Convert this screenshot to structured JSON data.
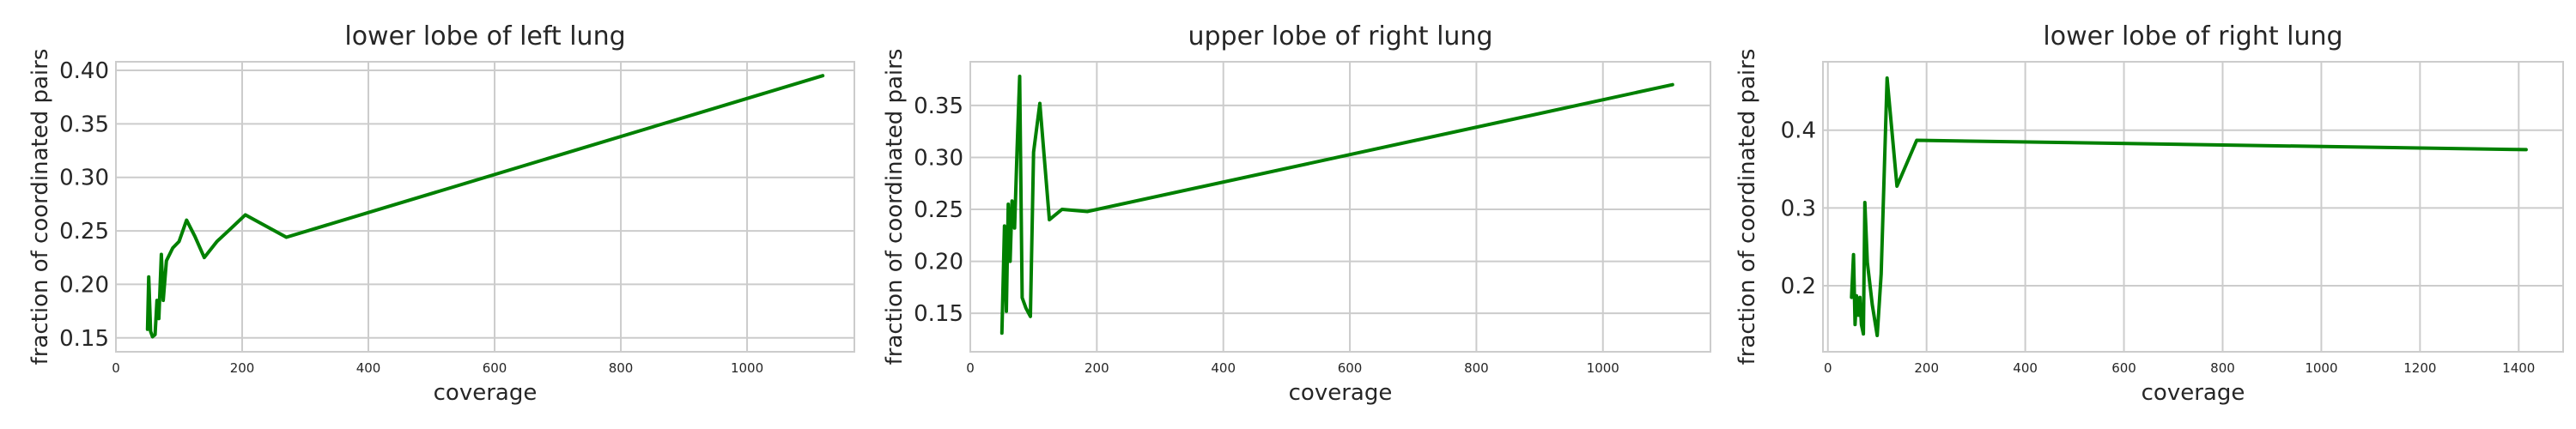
{
  "chart_data": [
    {
      "type": "line",
      "title": "lower lobe of left lung",
      "xlabel": "coverage",
      "ylabel": "fraction of coordinated pairs",
      "xlim": [
        0,
        1170
      ],
      "ylim": [
        0.137,
        0.408
      ],
      "xticks": [
        0,
        200,
        400,
        600,
        800,
        1000
      ],
      "yticks": [
        0.15,
        0.2,
        0.25,
        0.3,
        0.35,
        0.4
      ],
      "ytick_labels": [
        "0.15",
        "0.20",
        "0.25",
        "0.30",
        "0.35",
        "0.40"
      ],
      "grid": true,
      "color": "#008000",
      "series": [
        {
          "x": [
            50,
            52,
            55,
            58,
            62,
            65,
            68,
            72,
            75,
            80,
            90,
            100,
            112,
            125,
            140,
            160,
            180,
            205,
            270,
            1120
          ],
          "y": [
            0.158,
            0.207,
            0.156,
            0.151,
            0.153,
            0.185,
            0.168,
            0.228,
            0.185,
            0.222,
            0.234,
            0.24,
            0.26,
            0.245,
            0.225,
            0.24,
            0.251,
            0.265,
            0.244,
            0.395
          ]
        }
      ]
    },
    {
      "type": "line",
      "title": "upper lobe of right lung",
      "xlabel": "coverage",
      "ylabel": "fraction of coordinated pairs",
      "xlim": [
        0,
        1170
      ],
      "ylim": [
        0.113,
        0.392
      ],
      "xticks": [
        0,
        200,
        400,
        600,
        800,
        1000
      ],
      "yticks": [
        0.15,
        0.2,
        0.25,
        0.3,
        0.35
      ],
      "ytick_labels": [
        "0.15",
        "0.20",
        "0.25",
        "0.30",
        "0.35"
      ],
      "grid": true,
      "color": "#008000",
      "series": [
        {
          "x": [
            50,
            54,
            57,
            60,
            63,
            66,
            70,
            74,
            78,
            82,
            88,
            95,
            100,
            110,
            125,
            145,
            185,
            1110
          ],
          "y": [
            0.131,
            0.234,
            0.152,
            0.255,
            0.2,
            0.258,
            0.232,
            0.308,
            0.378,
            0.165,
            0.155,
            0.147,
            0.305,
            0.352,
            0.24,
            0.25,
            0.248,
            0.37
          ]
        }
      ]
    },
    {
      "type": "line",
      "title": "lower lobe of right lung",
      "xlabel": "coverage",
      "ylabel": "fraction of coordinated pairs",
      "xlim": [
        -10,
        1490
      ],
      "ylim": [
        0.115,
        0.488
      ],
      "xticks": [
        0,
        200,
        400,
        600,
        800,
        1000,
        1200,
        1400
      ],
      "yticks": [
        0.2,
        0.3,
        0.4
      ],
      "ytick_labels": [
        "0.2",
        "0.3",
        "0.4"
      ],
      "grid": true,
      "color": "#008000",
      "series": [
        {
          "x": [
            48,
            52,
            55,
            58,
            62,
            65,
            68,
            72,
            75,
            80,
            90,
            100,
            108,
            120,
            140,
            180,
            1415
          ],
          "y": [
            0.185,
            0.24,
            0.15,
            0.187,
            0.162,
            0.185,
            0.15,
            0.138,
            0.307,
            0.23,
            0.175,
            0.136,
            0.215,
            0.467,
            0.328,
            0.387,
            0.375
          ]
        }
      ]
    }
  ]
}
